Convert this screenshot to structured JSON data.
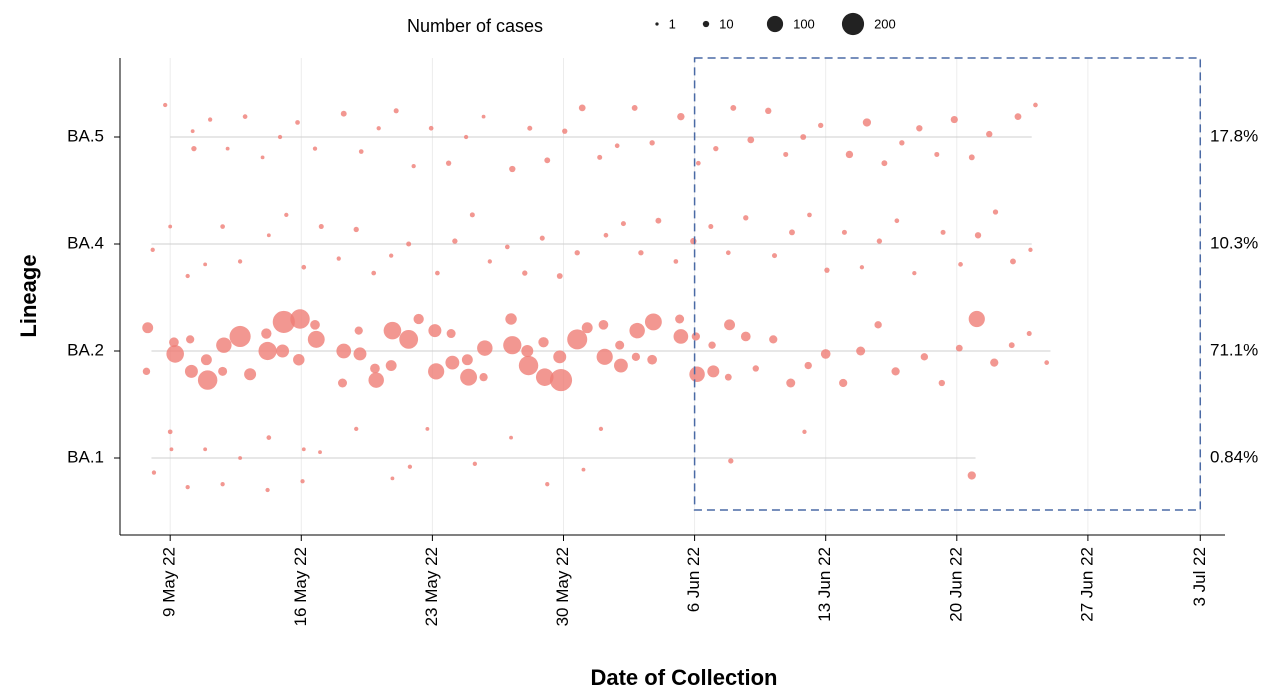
{
  "chart_data": {
    "type": "bubble",
    "x_label": "Date of Collection",
    "y_label": "Lineage",
    "size_legend": {
      "title": "Number of cases",
      "values": [
        1,
        10,
        100,
        200
      ]
    },
    "xlim": [
      "2022-05-06",
      "2022-07-04"
    ],
    "xticks": [
      {
        "value": "2022-05-09",
        "label": "9 May 22"
      },
      {
        "value": "2022-05-16",
        "label": "16 May 22"
      },
      {
        "value": "2022-05-23",
        "label": "23 May 22"
      },
      {
        "value": "2022-05-30",
        "label": "30 May 22"
      },
      {
        "value": "2022-06-06",
        "label": "6 Jun 22"
      },
      {
        "value": "2022-06-13",
        "label": "13 Jun 22"
      },
      {
        "value": "2022-06-20",
        "label": "20 Jun 22"
      },
      {
        "value": "2022-06-27",
        "label": "27 Jun 22"
      },
      {
        "value": "2022-07-03",
        "label": "3 Jul 22"
      }
    ],
    "grid": true,
    "color": "#ef7d76",
    "highlight": {
      "x": [
        "2022-06-06",
        "2022-07-03"
      ],
      "color": "#4a6aa5"
    },
    "series": [
      {
        "name": "BA.5",
        "share": "17.8%",
        "x": [
          "2022-05-09",
          "2022-05-10",
          "2022-05-10",
          "2022-05-11",
          "2022-05-12",
          "2022-05-13",
          "2022-05-14",
          "2022-05-15",
          "2022-05-16",
          "2022-05-17",
          "2022-05-18",
          "2022-05-19",
          "2022-05-20",
          "2022-05-21",
          "2022-05-22",
          "2022-05-23",
          "2022-05-24",
          "2022-05-25",
          "2022-05-26",
          "2022-05-27",
          "2022-05-28",
          "2022-05-29",
          "2022-05-30",
          "2022-05-31",
          "2022-06-01",
          "2022-06-02",
          "2022-06-03",
          "2022-06-04",
          "2022-06-05",
          "2022-06-06",
          "2022-06-07",
          "2022-06-08",
          "2022-06-09",
          "2022-06-10",
          "2022-06-11",
          "2022-06-12",
          "2022-06-13",
          "2022-06-14",
          "2022-06-15",
          "2022-06-16",
          "2022-06-17",
          "2022-06-18",
          "2022-06-19",
          "2022-06-20",
          "2022-06-21",
          "2022-06-22",
          "2022-06-23",
          "2022-06-24"
        ],
        "values": [
          3,
          6,
          2,
          3,
          2,
          4,
          2,
          3,
          4,
          3,
          8,
          4,
          3,
          5,
          3,
          4,
          6,
          3,
          2,
          10,
          5,
          8,
          6,
          12,
          5,
          4,
          8,
          6,
          15,
          4,
          6,
          8,
          12,
          10,
          5,
          8,
          6,
          15,
          20,
          8,
          6,
          10,
          5,
          14,
          8,
          10,
          12,
          4
        ]
      },
      {
        "name": "BA.4",
        "share": "10.3%",
        "x": [
          "2022-05-08",
          "2022-05-09",
          "2022-05-10",
          "2022-05-11",
          "2022-05-12",
          "2022-05-13",
          "2022-05-14",
          "2022-05-15",
          "2022-05-16",
          "2022-05-17",
          "2022-05-18",
          "2022-05-19",
          "2022-05-20",
          "2022-05-21",
          "2022-05-22",
          "2022-05-23",
          "2022-05-24",
          "2022-05-25",
          "2022-05-26",
          "2022-05-27",
          "2022-05-28",
          "2022-05-29",
          "2022-05-30",
          "2022-05-31",
          "2022-06-01",
          "2022-06-02",
          "2022-06-03",
          "2022-06-04",
          "2022-06-05",
          "2022-06-06",
          "2022-06-07",
          "2022-06-08",
          "2022-06-09",
          "2022-06-10",
          "2022-06-11",
          "2022-06-12",
          "2022-06-13",
          "2022-06-14",
          "2022-06-15",
          "2022-06-16",
          "2022-06-17",
          "2022-06-18",
          "2022-06-19",
          "2022-06-20",
          "2022-06-21",
          "2022-06-22",
          "2022-06-23",
          "2022-06-24"
        ],
        "values": [
          3,
          2,
          3,
          2,
          4,
          3,
          2,
          3,
          4,
          5,
          3,
          6,
          4,
          3,
          5,
          4,
          6,
          5,
          3,
          4,
          6,
          5,
          8,
          6,
          4,
          5,
          6,
          8,
          4,
          10,
          5,
          4,
          6,
          5,
          8,
          4,
          6,
          5,
          3,
          6,
          4,
          3,
          5,
          4,
          10,
          6,
          8,
          3
        ]
      },
      {
        "name": "BA.2",
        "share": "71.1%",
        "x": [
          "2022-05-08",
          "2022-05-08",
          "2022-05-09",
          "2022-05-09",
          "2022-05-10",
          "2022-05-10",
          "2022-05-11",
          "2022-05-11",
          "2022-05-12",
          "2022-05-12",
          "2022-05-13",
          "2022-05-13",
          "2022-05-14",
          "2022-05-14",
          "2022-05-15",
          "2022-05-15",
          "2022-05-16",
          "2022-05-16",
          "2022-05-17",
          "2022-05-17",
          "2022-05-18",
          "2022-05-18",
          "2022-05-19",
          "2022-05-19",
          "2022-05-20",
          "2022-05-20",
          "2022-05-21",
          "2022-05-21",
          "2022-05-22",
          "2022-05-22",
          "2022-05-23",
          "2022-05-23",
          "2022-05-24",
          "2022-05-24",
          "2022-05-25",
          "2022-05-25",
          "2022-05-26",
          "2022-05-26",
          "2022-05-27",
          "2022-05-27",
          "2022-05-28",
          "2022-05-28",
          "2022-05-29",
          "2022-05-29",
          "2022-05-30",
          "2022-05-30",
          "2022-05-31",
          "2022-05-31",
          "2022-06-01",
          "2022-06-01",
          "2022-06-02",
          "2022-06-02",
          "2022-06-03",
          "2022-06-03",
          "2022-06-04",
          "2022-06-04",
          "2022-06-05",
          "2022-06-05",
          "2022-06-06",
          "2022-06-06",
          "2022-06-07",
          "2022-06-07",
          "2022-06-08",
          "2022-06-08",
          "2022-06-09",
          "2022-06-09",
          "2022-06-10",
          "2022-06-11",
          "2022-06-12",
          "2022-06-13",
          "2022-06-14",
          "2022-06-15",
          "2022-06-16",
          "2022-06-17",
          "2022-06-18",
          "2022-06-19",
          "2022-06-20",
          "2022-06-21",
          "2022-06-22",
          "2022-06-23",
          "2022-06-24",
          "2022-06-25"
        ],
        "values": [
          40,
          15,
          120,
          30,
          60,
          20,
          150,
          40,
          90,
          25,
          180,
          50,
          130,
          35,
          200,
          60,
          150,
          45,
          110,
          30,
          80,
          25,
          60,
          20,
          90,
          30,
          120,
          40,
          140,
          35,
          100,
          60,
          70,
          25,
          110,
          40,
          90,
          20,
          130,
          45,
          150,
          50,
          120,
          35,
          200,
          60,
          160,
          40,
          100,
          30,
          70,
          25,
          90,
          20,
          110,
          30,
          80,
          25,
          90,
          20,
          50,
          15,
          40,
          12,
          30,
          10,
          20,
          25,
          15,
          30,
          20,
          25,
          15,
          20,
          15,
          10,
          12,
          100,
          20,
          8,
          5,
          4
        ]
      },
      {
        "name": "BA.1",
        "share": "0.84%",
        "x": [
          "2022-05-08",
          "2022-05-09",
          "2022-05-09",
          "2022-05-10",
          "2022-05-11",
          "2022-05-12",
          "2022-05-13",
          "2022-05-14",
          "2022-05-14",
          "2022-05-16",
          "2022-05-16",
          "2022-05-17",
          "2022-05-19",
          "2022-05-21",
          "2022-05-22",
          "2022-05-23",
          "2022-05-25",
          "2022-05-27",
          "2022-05-29",
          "2022-05-31",
          "2022-06-01",
          "2022-06-08",
          "2022-06-12",
          "2022-06-21"
        ],
        "values": [
          3,
          2,
          4,
          3,
          2,
          3,
          2,
          4,
          3,
          2,
          3,
          2,
          3,
          2,
          3,
          2,
          3,
          2,
          3,
          2,
          3,
          6,
          3,
          20
        ]
      }
    ]
  }
}
